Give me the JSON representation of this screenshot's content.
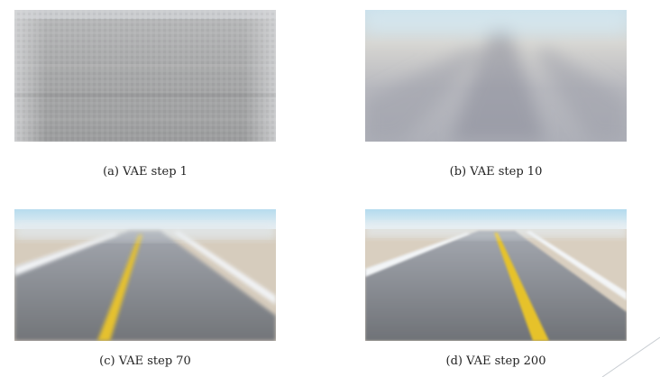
{
  "figure": {
    "panels": [
      {
        "id": "a",
        "caption": "(a) VAE step 1",
        "training_step": 1
      },
      {
        "id": "b",
        "caption": "(b) VAE step 10",
        "training_step": 10
      },
      {
        "id": "c",
        "caption": "(c) VAE step 70",
        "training_step": 70
      },
      {
        "id": "d",
        "caption": "(d) VAE step 200",
        "training_step": 200
      }
    ]
  },
  "colors": {
    "road": "#7d8086",
    "sky": "#cfe3ee",
    "sand": "#d9cfc0",
    "lane_line": "#e5c12e",
    "edge_line": "#f2f4f6"
  }
}
